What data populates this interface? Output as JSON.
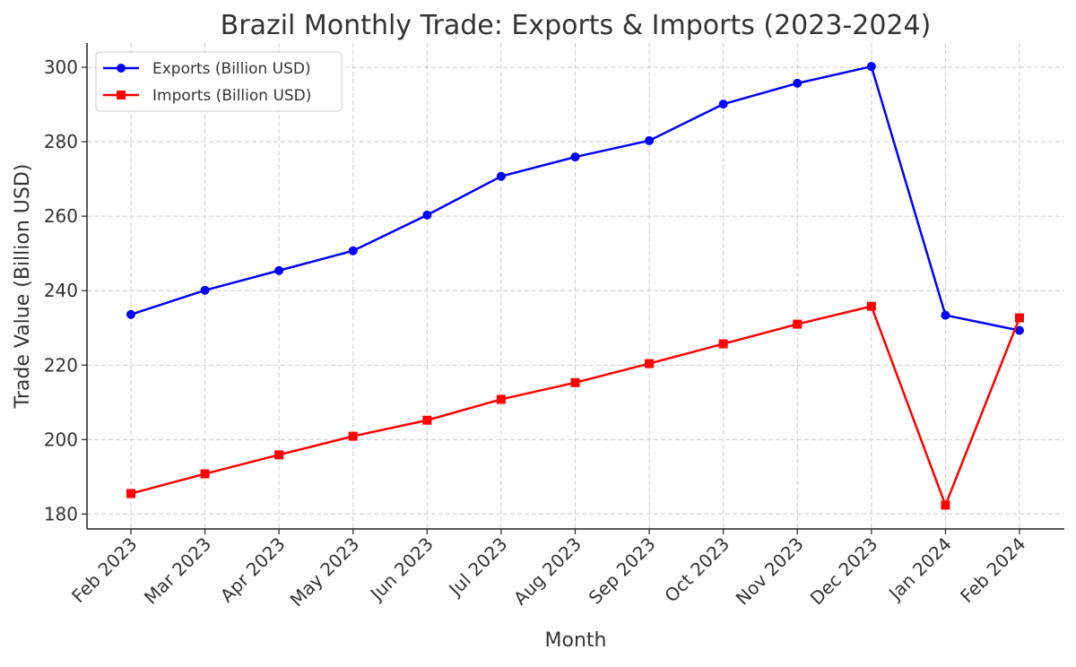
{
  "chart_data": {
    "type": "line",
    "title": "Brazil Monthly Trade: Exports & Imports (2023-2024)",
    "xlabel": "Month",
    "ylabel": "Trade Value (Billion USD)",
    "categories": [
      "Feb 2023",
      "Mar 2023",
      "Apr 2023",
      "May 2023",
      "Jun 2023",
      "Jul 2023",
      "Aug 2023",
      "Sep 2023",
      "Oct 2023",
      "Nov 2023",
      "Dec 2023",
      "Jan 2024",
      "Feb 2024"
    ],
    "ylim": [
      176,
      306.5
    ],
    "yticks": [
      180,
      200,
      220,
      240,
      260,
      280,
      300
    ],
    "grid": true,
    "legend_position": "top-left",
    "series": [
      {
        "name": "Exports (Billion USD)",
        "color": "#0000ff",
        "marker": "circle",
        "values": [
          233.6,
          240.1,
          245.4,
          250.7,
          260.3,
          270.7,
          275.9,
          280.3,
          290.1,
          295.7,
          300.2,
          233.4,
          229.3
        ]
      },
      {
        "name": "Imports (Billion USD)",
        "color": "#ff0000",
        "marker": "square",
        "values": [
          185.5,
          190.8,
          195.9,
          200.9,
          205.2,
          210.8,
          215.3,
          220.4,
          225.7,
          231.0,
          235.8,
          182.4,
          232.7
        ]
      }
    ]
  }
}
